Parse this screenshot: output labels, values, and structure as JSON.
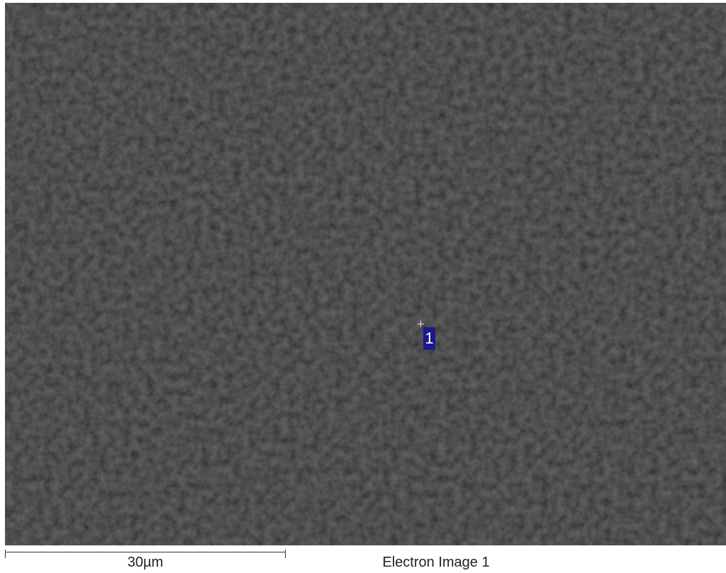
{
  "micrograph": {
    "background_color": "#2a2a2a",
    "spot_label": "1",
    "spot_label_color": "#1a1a8c"
  },
  "scale_bar": {
    "label": "30µm"
  },
  "caption": "Electron Image 1"
}
